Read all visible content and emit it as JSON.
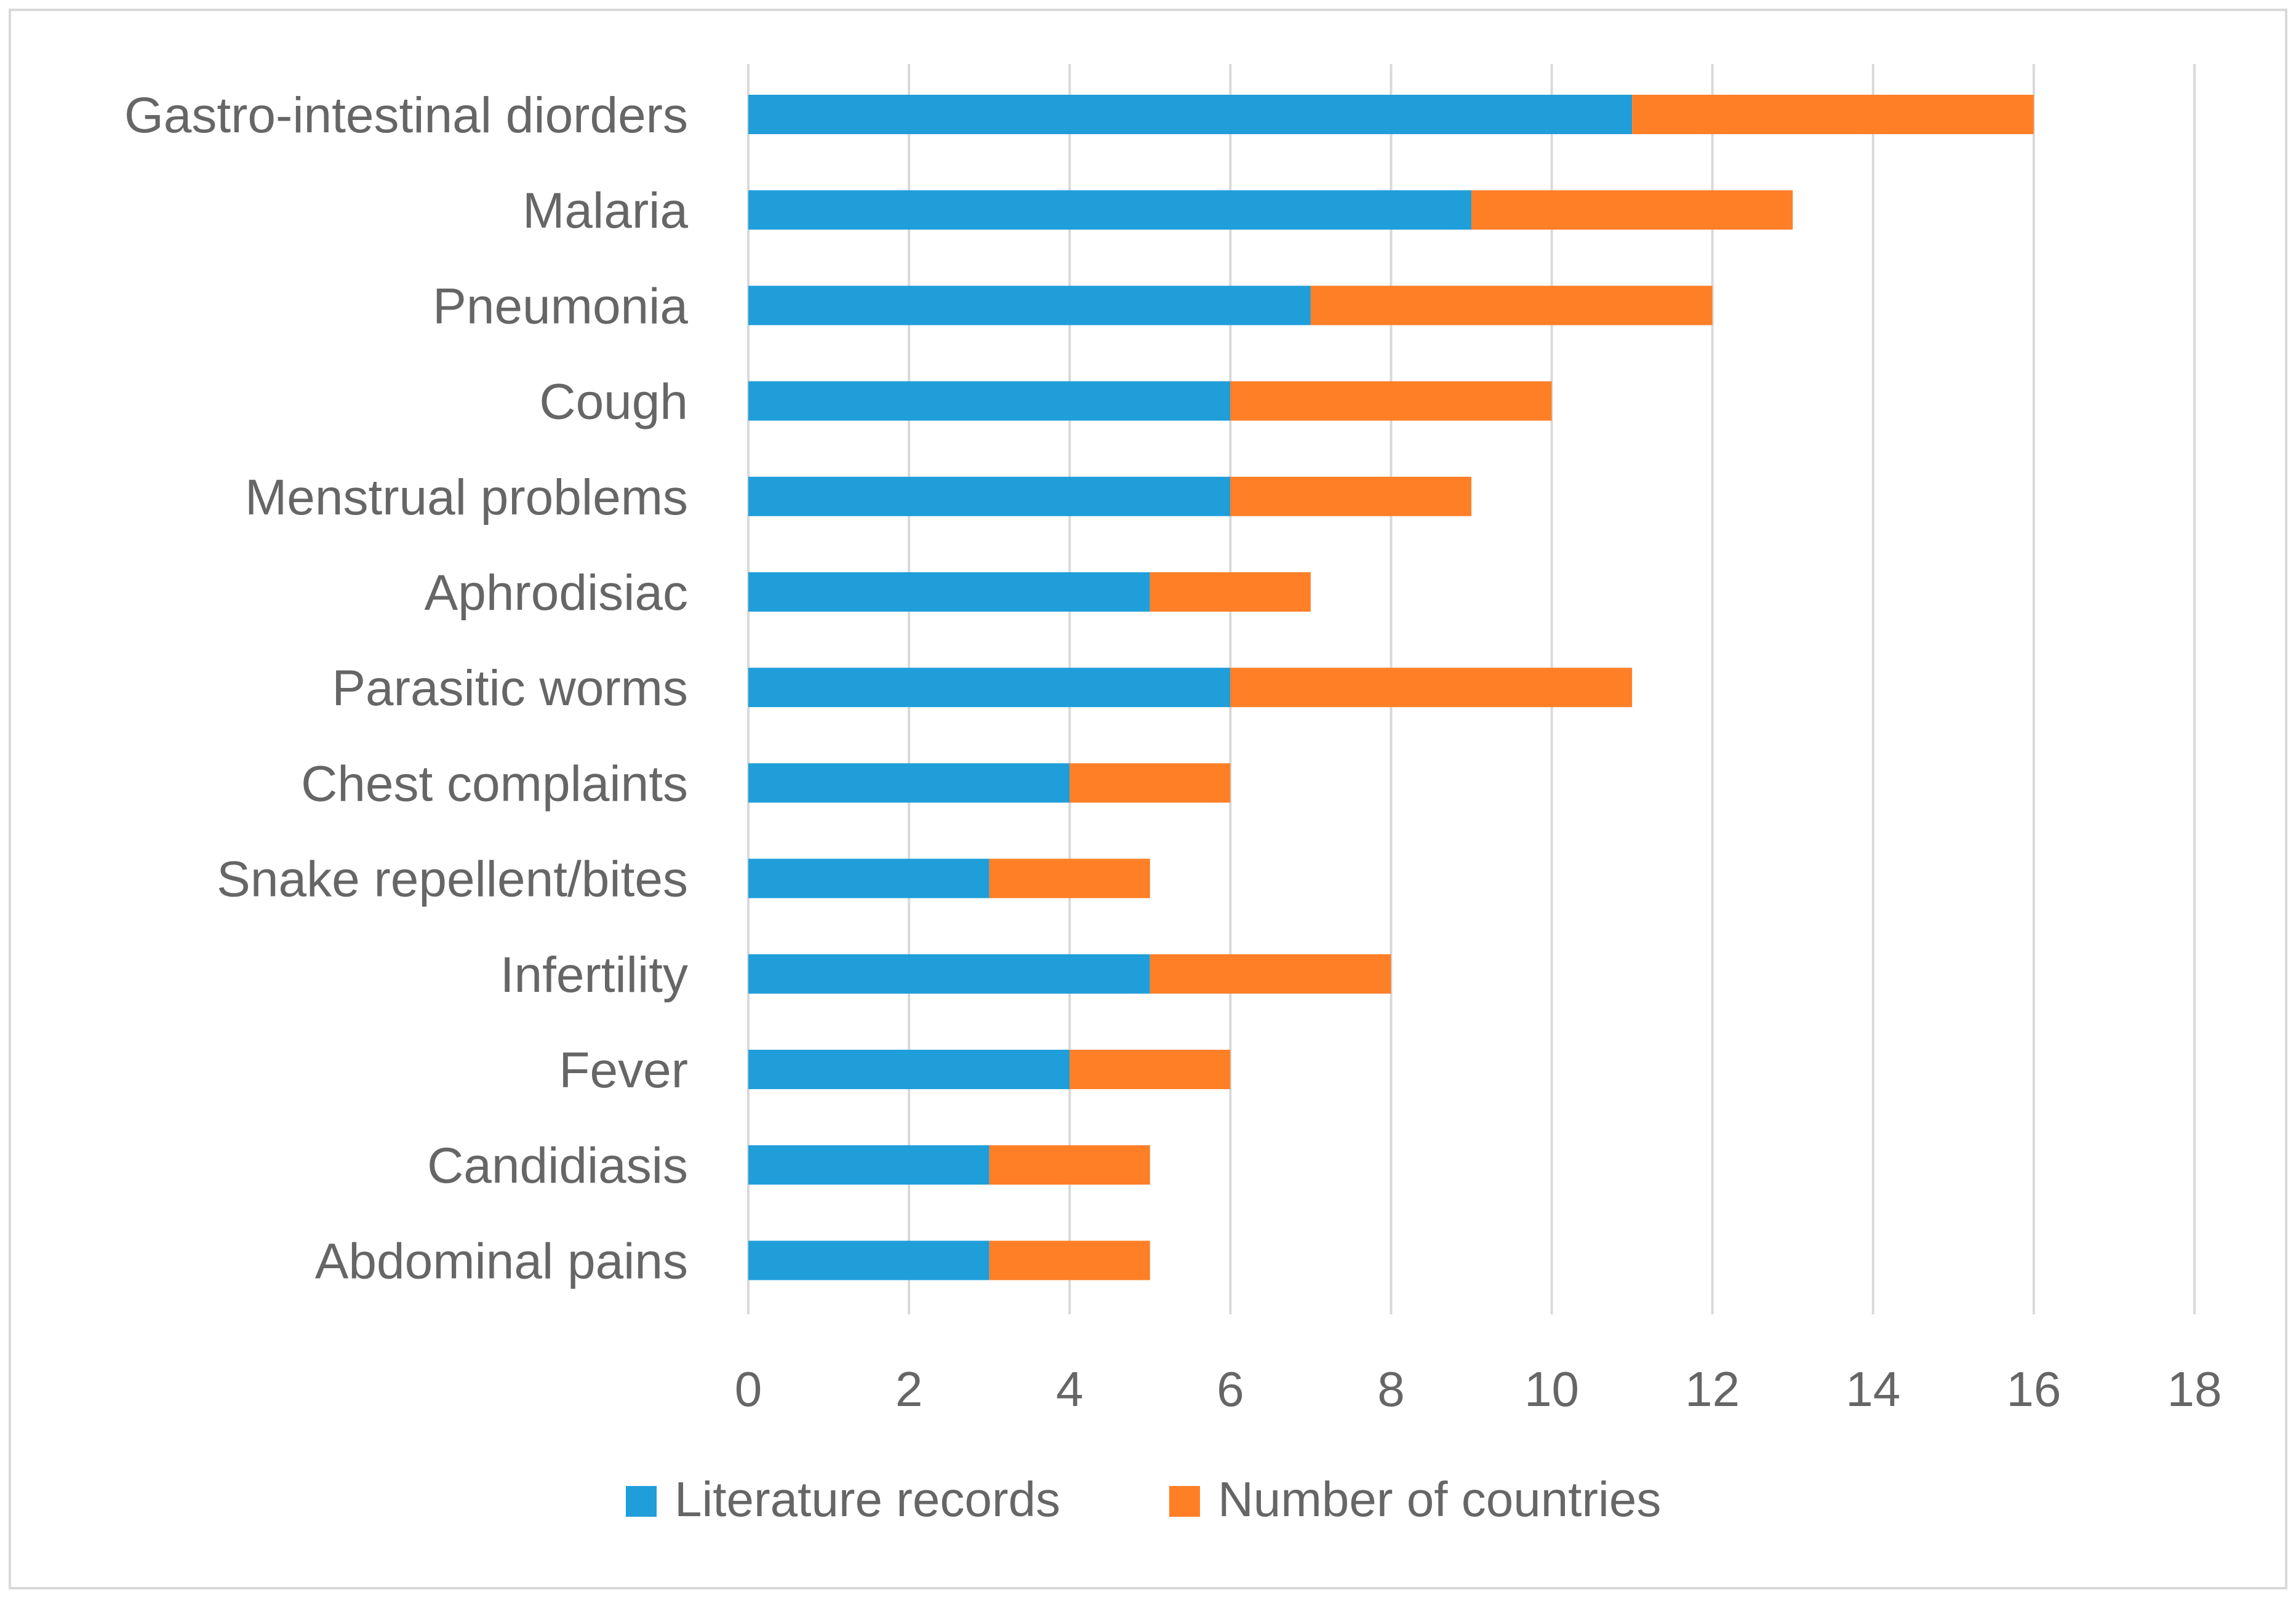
{
  "chart_data": {
    "type": "bar",
    "orientation": "horizontal",
    "stacked": true,
    "title": "",
    "xlabel": "",
    "ylabel": "",
    "categories": [
      "Gastro-intestinal diorders",
      "Malaria",
      "Pneumonia",
      "Cough",
      "Menstrual problems",
      "Aphrodisiac",
      "Parasitic worms",
      "Chest complaints",
      "Snake repellent/bites",
      "Infertility",
      "Fever",
      "Candidiasis",
      "Abdominal pains"
    ],
    "series": [
      {
        "name": "Literature records",
        "color": "#1f9ed9",
        "values": [
          11,
          9,
          7,
          6,
          6,
          5,
          6,
          4,
          3,
          5,
          4,
          3,
          3
        ]
      },
      {
        "name": "Number of countries",
        "color": "#ff7f27",
        "values": [
          5,
          4,
          5,
          4,
          3,
          2,
          5,
          2,
          2,
          3,
          2,
          2,
          2
        ]
      }
    ],
    "xlim": [
      0,
      18
    ],
    "xticks": [
      "0",
      "2",
      "4",
      "6",
      "8",
      "10",
      "12",
      "14",
      "16",
      "18"
    ],
    "grid": true,
    "legend_position": "bottom"
  }
}
